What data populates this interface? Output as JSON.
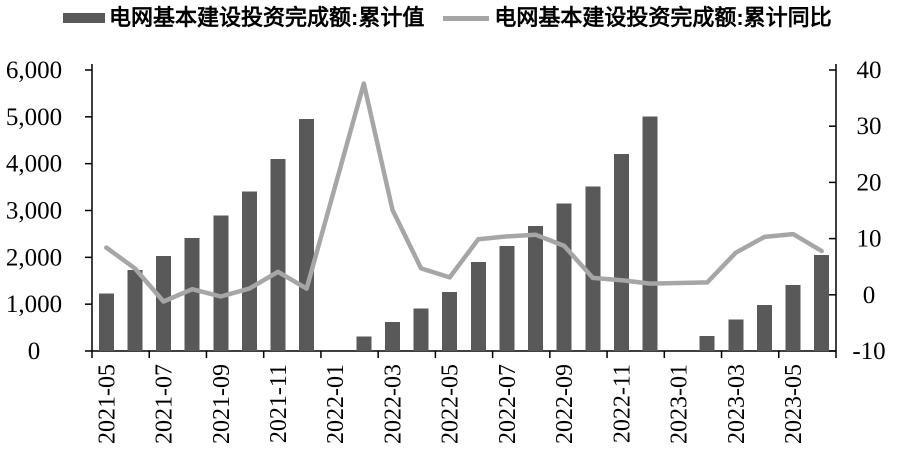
{
  "chart_data": {
    "type": "bar+line",
    "title": "",
    "categories": [
      "2021-05",
      "2021-06",
      "2021-07",
      "2021-08",
      "2021-09",
      "2021-10",
      "2021-11",
      "2021-12",
      "2022-01",
      "2022-02",
      "2022-03",
      "2022-04",
      "2022-05",
      "2022-06",
      "2022-07",
      "2022-08",
      "2022-09",
      "2022-10",
      "2022-11",
      "2022-12",
      "2023-01",
      "2023-02",
      "2023-03",
      "2023-04",
      "2023-05",
      "2023-06"
    ],
    "series": [
      {
        "name": "电网基本建设投资完成额:累计值",
        "type": "bar",
        "axis": "left",
        "values": [
          1225,
          1734,
          2029,
          2409,
          2891,
          3408,
          4102,
          4951,
          null,
          313,
          621,
          909,
          1263,
          1905,
          2239,
          2667,
          3154,
          3511,
          4209,
          5012,
          null,
          319,
          668,
          977,
          1410,
          2054
        ]
      },
      {
        "name": "电网基本建设投资完成额:累计同比",
        "type": "line",
        "axis": "right",
        "values": [
          8.4,
          4.7,
          -1.2,
          1.0,
          -0.3,
          1.1,
          4.1,
          1.1,
          null,
          37.6,
          15.1,
          4.7,
          3.1,
          9.9,
          10.4,
          10.7,
          8.7,
          3.0,
          2.6,
          2.0,
          null,
          2.2,
          7.5,
          10.3,
          10.8,
          7.8
        ]
      }
    ],
    "left_axis": {
      "min": 0,
      "max": 6000,
      "step": 1000,
      "tick_labels": [
        "0",
        "1,000",
        "2,000",
        "3,000",
        "4,000",
        "5,000",
        "6,000"
      ]
    },
    "right_axis": {
      "min": -10,
      "max": 40,
      "step": 10,
      "tick_labels": [
        "-10",
        "0",
        "10",
        "20",
        "30",
        "40"
      ]
    },
    "x_tick_labels": [
      "2021-05",
      "2021-07",
      "2021-09",
      "2021-11",
      "2022-01",
      "2022-03",
      "2022-05",
      "2022-07",
      "2022-09",
      "2022-11",
      "2023-01",
      "2023-03",
      "2023-05"
    ],
    "legend_position": "top",
    "grid": false
  },
  "colors": {
    "bar": "#595959",
    "line": "#a6a6a6",
    "axis": "#000000",
    "text": "#000000",
    "background": "#ffffff"
  }
}
